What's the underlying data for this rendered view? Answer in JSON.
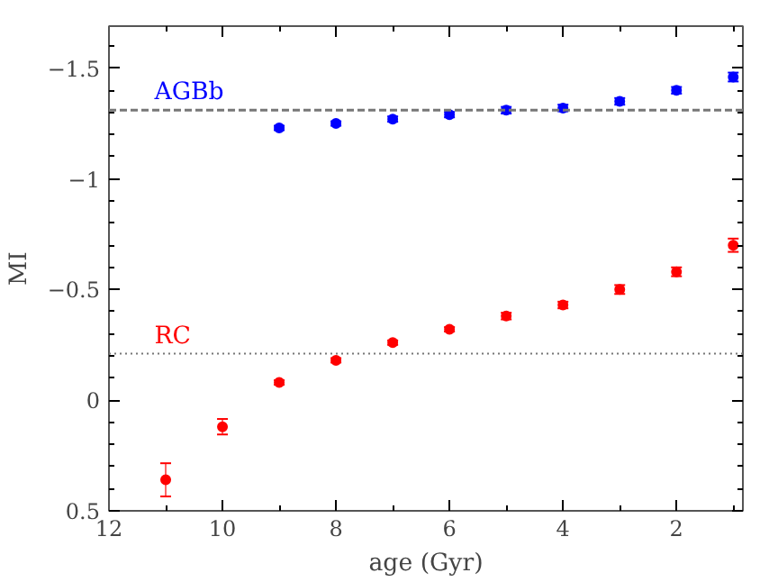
{
  "chart_data": {
    "type": "scatter",
    "xlabel": "age (Gyr)",
    "ylabel": "MI",
    "x": [
      11,
      10,
      9,
      8,
      7,
      6,
      5,
      4,
      3,
      2,
      1
    ],
    "xlim": [
      12,
      0.83
    ],
    "xticks": [
      12,
      10,
      8,
      6,
      4,
      2
    ],
    "ylim": [
      0.5,
      -1.69
    ],
    "yticks": [
      0.5,
      0,
      -0.5,
      -1,
      -1.5
    ],
    "marker": "circle",
    "grid": false,
    "series": [
      {
        "color": "#ff0000",
        "values": [
          0.36,
          0.12,
          -0.08,
          -0.18,
          -0.26,
          -0.32,
          -0.38,
          -0.43,
          -0.5,
          -0.58,
          -0.7
        ],
        "errors": [
          0.075,
          0.035,
          0.01,
          0.01,
          0.01,
          0.01,
          0.015,
          0.015,
          0.02,
          0.02,
          0.03
        ]
      },
      {
        "color": "#0000ff",
        "x": [
          9,
          8,
          7,
          6,
          5,
          4,
          3,
          2,
          1
        ],
        "values": [
          -1.23,
          -1.25,
          -1.27,
          -1.29,
          -1.31,
          -1.32,
          -1.35,
          -1.4,
          -1.46
        ],
        "errors": [
          0.01,
          0.01,
          0.012,
          0.012,
          0.015,
          0.015,
          0.015,
          0.015,
          0.02
        ]
      }
    ],
    "ref_lines": [
      {
        "axis": "y",
        "value": -0.21,
        "label": "RC",
        "line_style": "dotted"
      },
      {
        "axis": "y",
        "value": -1.31,
        "label": "AGBb",
        "line_style": "dashed"
      }
    ]
  }
}
